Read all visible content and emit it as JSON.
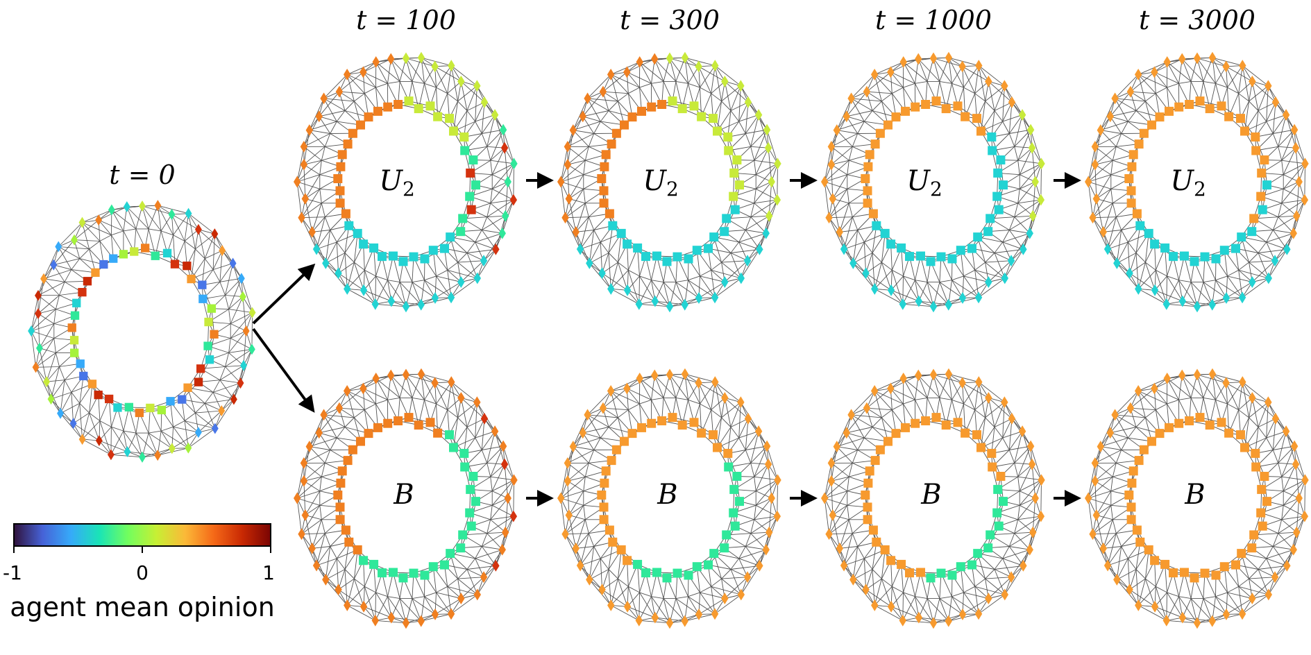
{
  "initial_panel": {
    "time_label": "t = 0"
  },
  "rows": [
    {
      "rule_label": "U",
      "rule_subscript": "2",
      "panels": [
        {
          "time_label": "t = 100"
        },
        {
          "time_label": "t = 300"
        },
        {
          "time_label": "t = 1000"
        },
        {
          "time_label": "t = 3000"
        }
      ]
    },
    {
      "rule_label": "B",
      "rule_subscript": "",
      "panels": [
        {
          "time_label": ""
        },
        {
          "time_label": ""
        },
        {
          "time_label": ""
        },
        {
          "time_label": ""
        }
      ]
    }
  ],
  "colorbar": {
    "title": "agent mean opinion",
    "ticks": [
      "-1",
      "0",
      "1"
    ],
    "colormap": [
      "#30123b",
      "#4662d7",
      "#36aaf9",
      "#1ae4b6",
      "#72fe5e",
      "#c7ef34",
      "#fbb938",
      "#f56918",
      "#c92903",
      "#7a0403"
    ]
  },
  "colors": {
    "edge": "#333333",
    "orange": "#f79a2e",
    "orange_dark": "#f07f20",
    "cyan": "#22d3d3",
    "green": "#2fe89a",
    "yellow_green": "#c8ea3a",
    "red": "#d4320e",
    "blue": "#4876e8",
    "arrow": "#000000"
  },
  "node_shapes": {
    "outer_ring": "diamond",
    "inner_ring": "square"
  }
}
